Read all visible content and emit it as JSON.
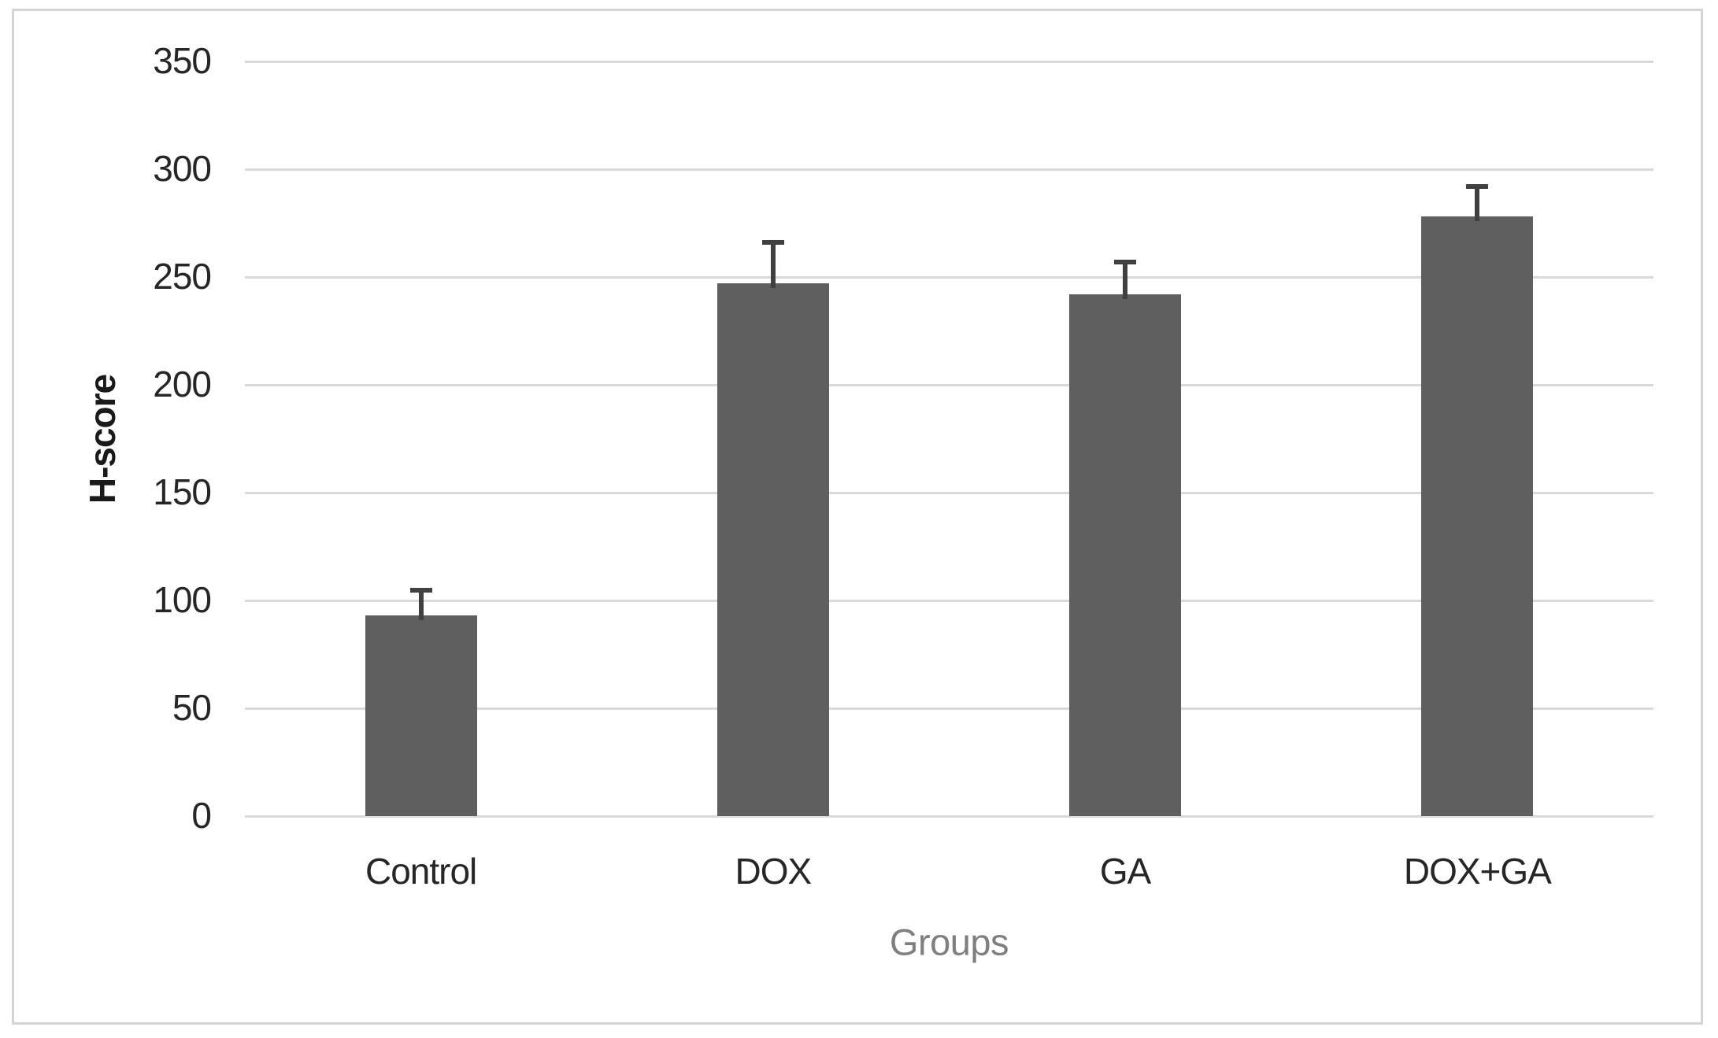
{
  "chart_data": {
    "type": "bar",
    "title": "",
    "xlabel": "Groups",
    "ylabel": "H-score",
    "categories": [
      "Control",
      "DOX",
      "GA",
      "DOX+GA"
    ],
    "values": [
      93,
      247,
      242,
      278
    ],
    "errors_upper": [
      13,
      20,
      16,
      15
    ],
    "ylim": [
      0,
      350
    ],
    "yticks": [
      0,
      50,
      100,
      150,
      200,
      250,
      300,
      350
    ],
    "grid": "horizontal-on",
    "legend": "none",
    "colors": {
      "bar_fill": "#5f5f5f",
      "error_bar": "#404040",
      "gridline": "#d9d9d9",
      "tick_label": "#262626",
      "x_category_label": "#262626",
      "y_axis_title": "#1a1a1a",
      "x_axis_title": "#7f7f7f",
      "frame_border": "#d4d4d4",
      "background": "#ffffff"
    }
  }
}
